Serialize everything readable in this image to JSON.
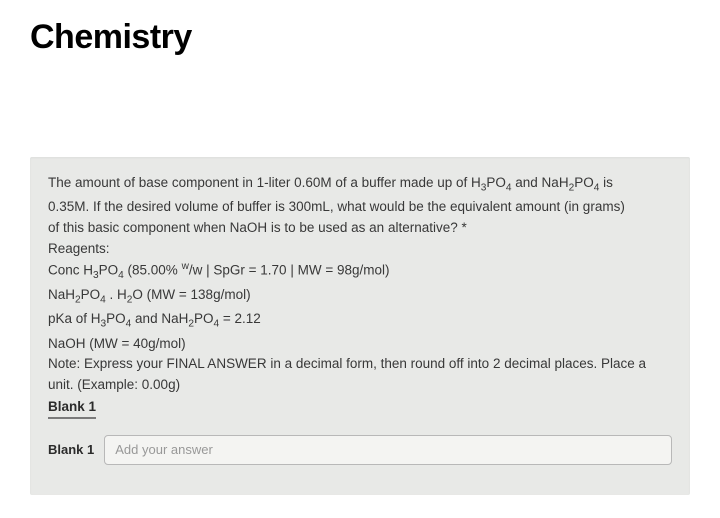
{
  "page": {
    "title": "Chemistry"
  },
  "question": {
    "intro_l1_a": "The amount of base component in 1-liter 0.60M of a buffer made up of H",
    "intro_l1_b": "PO",
    "intro_l1_c": " and NaH",
    "intro_l1_d": "PO",
    "intro_l1_e": " is",
    "intro_l2": "0.35M. If the desired volume of buffer is 300mL, what would be the equivalent amount (in grams)",
    "intro_l3": "of this basic component when NaOH is to be used as an alternative? *",
    "reagents_label": "Reagents:",
    "r1_a": "Conc H",
    "r1_b": "PO",
    "r1_c": " (85.00% ",
    "r1_d": "/w | SpGr = 1.70 | MW = 98g/mol)",
    "r2_a": "NaH",
    "r2_b": "PO",
    "r2_c": " . H",
    "r2_d": "O (MW = 138g/mol)",
    "r3_a": "pKa of H",
    "r3_b": "PO",
    "r3_c": " and NaH",
    "r3_d": "PO",
    "r3_e": " = 2.12",
    "r4": "NaOH (MW = 40g/mol)",
    "note_l1": "Note: Express your FINAL ANSWER in a decimal form, then round off into 2 decimal places. Place a",
    "note_l2": "unit. (Example: 0.00g)",
    "blank_heading": "Blank 1",
    "blank_label": "Blank 1",
    "placeholder": "Add your answer",
    "sub3": "3",
    "sub4": "4",
    "sub2": "2",
    "supw": "w"
  },
  "style": {
    "background": "#ffffff",
    "card_bg": "#e8e9e7",
    "title_color": "#000000",
    "text_color": "#383838",
    "input_border": "#b8b8b8",
    "input_bg": "#f4f4f2",
    "placeholder_color": "#989898"
  }
}
